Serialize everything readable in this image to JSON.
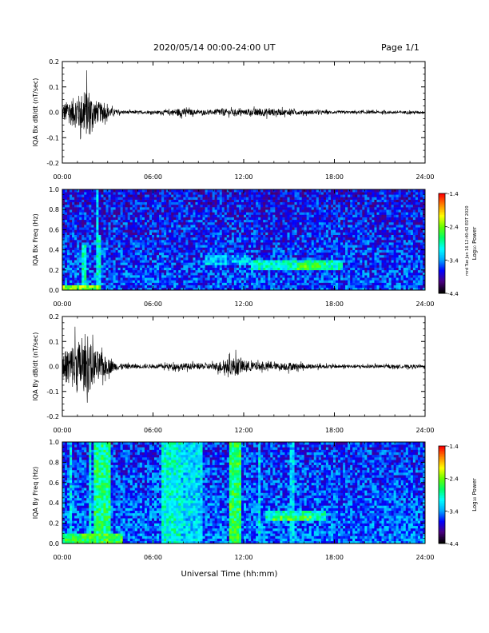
{
  "header": {
    "title": "2020/05/14  00:00-24:00 UT",
    "page": "Page 1/1",
    "stamp": "mrd Tue Jun 16 12:40:42 EDT 2020"
  },
  "chart_data": [
    {
      "type": "line",
      "panel": "bx-dbdt",
      "title": "",
      "xlabel": "",
      "ylabel": "IQA Bx dB/dt (nT/sec)",
      "xlim": [
        0,
        24
      ],
      "ylim": [
        -0.2,
        0.2
      ],
      "xticks": [
        "00:00",
        "06:00",
        "12:00",
        "18:00",
        "24:00"
      ],
      "yticks": [
        "-0.2",
        "-0.1",
        "0.0",
        "0.1",
        "0.2"
      ],
      "envelope": {
        "x": [
          0,
          0.5,
          1.0,
          1.5,
          1.7,
          2.0,
          2.5,
          3.0,
          3.5,
          4.0,
          5.0,
          6.0,
          7.0,
          7.5,
          8.0,
          8.5,
          9.0,
          10.0,
          10.5,
          11.0,
          12.0,
          12.5,
          13.0,
          14.0,
          15.0,
          16.0,
          17.0,
          18.0,
          20.0,
          22.0,
          24.0
        ],
        "amp": [
          0.06,
          0.09,
          0.12,
          0.15,
          0.19,
          0.1,
          0.07,
          0.04,
          0.02,
          0.012,
          0.01,
          0.01,
          0.015,
          0.025,
          0.03,
          0.02,
          0.015,
          0.015,
          0.03,
          0.022,
          0.018,
          0.022,
          0.03,
          0.025,
          0.018,
          0.015,
          0.012,
          0.01,
          0.01,
          0.01,
          0.01
        ]
      }
    },
    {
      "type": "heatmap",
      "panel": "bx-spectrogram",
      "title": "",
      "xlabel": "",
      "ylabel": "IQA Bx Freq (Hz)",
      "colorbar_label": "Log₁₀ Power",
      "colorbar_ticks": [
        "-1.4",
        "-2.4",
        "-3.4",
        "-4.4"
      ],
      "color_range": [
        -4.4,
        -1.4
      ],
      "xlim": [
        0,
        24
      ],
      "ylim": [
        0,
        1.0
      ],
      "xticks": [
        "00:00",
        "06:00",
        "12:00",
        "18:00",
        "24:00"
      ],
      "yticks": [
        "0.0",
        "0.2",
        "0.4",
        "0.6",
        "0.8",
        "1.0"
      ],
      "background_power": -3.6,
      "features": [
        {
          "t0": 0.0,
          "t1": 2.6,
          "f0": 0.0,
          "f1": 0.06,
          "power": -2.4
        },
        {
          "t0": 1.3,
          "t1": 1.6,
          "f0": 0.0,
          "f1": 0.45,
          "power": -3.0
        },
        {
          "t0": 2.2,
          "t1": 2.5,
          "f0": 0.0,
          "f1": 0.55,
          "power": -3.0
        },
        {
          "t0": 2.3,
          "t1": 2.4,
          "f0": 0.0,
          "f1": 1.0,
          "power": -3.2
        },
        {
          "t0": 9.5,
          "t1": 12.5,
          "f0": 0.25,
          "f1": 0.35,
          "power": -3.3
        },
        {
          "t0": 12.5,
          "t1": 18.5,
          "f0": 0.2,
          "f1": 0.3,
          "power": -3.0
        },
        {
          "t0": 15.5,
          "t1": 17.5,
          "f0": 0.2,
          "f1": 0.28,
          "power": -2.6
        }
      ]
    },
    {
      "type": "line",
      "panel": "by-dbdt",
      "title": "",
      "xlabel": "",
      "ylabel": "IQA By dB/dt (nT/sec)",
      "xlim": [
        0,
        24
      ],
      "ylim": [
        -0.2,
        0.2
      ],
      "xticks": [
        "00:00",
        "06:00",
        "12:00",
        "18:00",
        "24:00"
      ],
      "yticks": [
        "-0.2",
        "-0.1",
        "0.0",
        "0.1",
        "0.2"
      ],
      "envelope": {
        "x": [
          0,
          0.5,
          1.0,
          1.5,
          1.7,
          2.0,
          2.5,
          3.0,
          3.5,
          4.0,
          5.0,
          6.0,
          7.0,
          8.0,
          9.0,
          10.0,
          10.5,
          11.0,
          11.5,
          12.0,
          12.5,
          13.0,
          14.0,
          15.0,
          16.0,
          17.0,
          18.0,
          20.0,
          22.0,
          24.0
        ],
        "amp": [
          0.09,
          0.15,
          0.2,
          0.15,
          0.2,
          0.14,
          0.1,
          0.06,
          0.03,
          0.02,
          0.015,
          0.012,
          0.02,
          0.025,
          0.02,
          0.025,
          0.04,
          0.055,
          0.07,
          0.045,
          0.035,
          0.03,
          0.022,
          0.03,
          0.018,
          0.015,
          0.012,
          0.012,
          0.012,
          0.012
        ]
      }
    },
    {
      "type": "heatmap",
      "panel": "by-spectrogram",
      "title": "",
      "xlabel": "Universal Time (hh:mm)",
      "ylabel": "IQA By Freq (Hz)",
      "colorbar_label": "Log₁₀ Power",
      "colorbar_ticks": [
        "-1.4",
        "-2.4",
        "-3.4",
        "-4.4"
      ],
      "color_range": [
        -4.4,
        -1.4
      ],
      "xlim": [
        0,
        24
      ],
      "ylim": [
        0,
        1.0
      ],
      "xticks": [
        "00:00",
        "06:00",
        "12:00",
        "18:00",
        "24:00"
      ],
      "yticks": [
        "0.0",
        "0.2",
        "0.4",
        "0.6",
        "0.8",
        "1.0"
      ],
      "background_power": -3.5,
      "features": [
        {
          "t0": 0.0,
          "t1": 4.0,
          "f0": 0.0,
          "f1": 0.1,
          "power": -2.6
        },
        {
          "t0": 0.5,
          "t1": 0.7,
          "f0": 0.0,
          "f1": 1.0,
          "power": -3.2
        },
        {
          "t0": 1.7,
          "t1": 1.9,
          "f0": 0.0,
          "f1": 1.0,
          "power": -3.1
        },
        {
          "t0": 2.1,
          "t1": 3.2,
          "f0": 0.0,
          "f1": 1.0,
          "power": -2.8
        },
        {
          "t0": 6.5,
          "t1": 7.8,
          "f0": 0.0,
          "f1": 1.0,
          "power": -3.0
        },
        {
          "t0": 7.8,
          "t1": 9.3,
          "f0": 0.0,
          "f1": 1.0,
          "power": -3.2
        },
        {
          "t0": 11.0,
          "t1": 11.9,
          "f0": 0.0,
          "f1": 1.0,
          "power": -2.7
        },
        {
          "t0": 12.9,
          "t1": 13.1,
          "f0": 0.0,
          "f1": 1.0,
          "power": -3.1
        },
        {
          "t0": 15.0,
          "t1": 15.3,
          "f0": 0.0,
          "f1": 1.0,
          "power": -3.2
        },
        {
          "t0": 13.5,
          "t1": 17.5,
          "f0": 0.22,
          "f1": 0.32,
          "power": -3.0
        },
        {
          "t0": 14.0,
          "t1": 16.5,
          "f0": 0.22,
          "f1": 0.28,
          "power": -2.6
        }
      ]
    }
  ],
  "colors": {
    "axes": "#000000",
    "trace": "#000000",
    "colormap": [
      "#000000",
      "#4b0082",
      "#0000ff",
      "#00aaff",
      "#00ffff",
      "#00ff66",
      "#66ff00",
      "#ffff00",
      "#ff8800",
      "#ff0000"
    ]
  }
}
